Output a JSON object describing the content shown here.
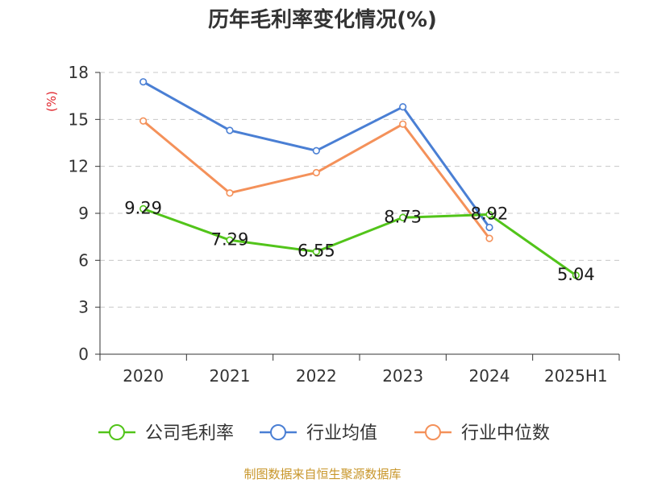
{
  "chart_data": {
    "type": "line",
    "title": "历年毛利率变化情况(%)",
    "ylabel": "(%)",
    "xlabel": "",
    "categories": [
      "2020",
      "2021",
      "2022",
      "2023",
      "2024",
      "2025H1"
    ],
    "ylim": [
      0,
      18
    ],
    "yticks": [
      "0",
      "3",
      "6",
      "9",
      "12",
      "15",
      "18"
    ],
    "grid": true,
    "legend_position": "bottom",
    "series": [
      {
        "name": "公司毛利率",
        "color": "#52c41a",
        "values": [
          9.29,
          7.29,
          6.55,
          8.73,
          8.92,
          5.04
        ],
        "data_labels": [
          "9.29",
          "7.29",
          "6.55",
          "8.73",
          "8.92",
          "5.04"
        ]
      },
      {
        "name": "行业均值",
        "color": "#4a7fd4",
        "values": [
          17.4,
          14.3,
          13.0,
          15.8,
          8.1,
          null
        ]
      },
      {
        "name": "行业中位数",
        "color": "#f4915a",
        "values": [
          14.9,
          10.3,
          11.6,
          14.7,
          7.4,
          null
        ]
      }
    ]
  },
  "source": "制图数据来自恒生聚源数据库",
  "colors": {
    "axis": "#333333",
    "grid": "#c8c8c8",
    "ylabel": "#e0242c"
  }
}
